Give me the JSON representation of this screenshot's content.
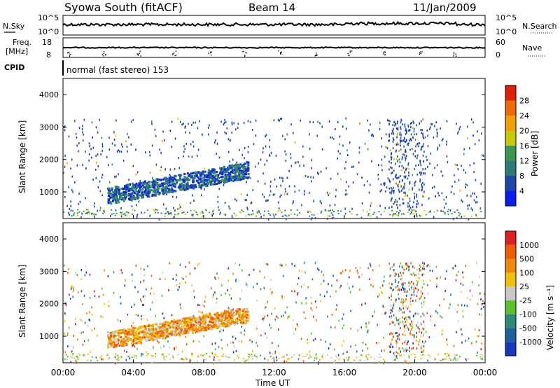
{
  "header": {
    "title": "Syowa South (fitACF)",
    "beam": "Beam 14",
    "date": "11/Jan/2009"
  },
  "noise_panel": {
    "left_label": "N.Sky",
    "right_label": "N.Search",
    "left_ticks": [
      "10^5",
      "10^0"
    ],
    "right_ticks": [
      "10^5",
      "10^0"
    ]
  },
  "freq_panel": {
    "left_label_1": "Freq.",
    "left_label_2": "[MHz]",
    "right_label": "Nave",
    "left_ticks": [
      "18",
      "8"
    ],
    "right_ticks": [
      "60",
      "0"
    ]
  },
  "cpid": {
    "label": "CPID",
    "value": "normal (fast stereo) 153"
  },
  "x_axis": {
    "label": "Time UT",
    "ticks": [
      "00:00",
      "04:00",
      "08:00",
      "12:00",
      "16:00",
      "20:00",
      "00:00"
    ]
  },
  "colorbar_power": {
    "label": "Power [dB]",
    "ticks": [
      "4",
      "8",
      "12",
      "16",
      "20",
      "24",
      "28"
    ],
    "colors": [
      "#0a1ef0",
      "#1e46a8",
      "#2d7a78",
      "#3c9650",
      "#c8c800",
      "#f0a000",
      "#f06a00",
      "#e02000"
    ]
  },
  "colorbar_velocity": {
    "label": "Velocity [m s⁻¹]",
    "ticks": [
      "1000",
      "500",
      "100",
      "25",
      "-25",
      "-100",
      "-500",
      "-1000"
    ],
    "colors": [
      "#1838c0",
      "#2060a0",
      "#2d8a78",
      "#5ac030",
      "#c8c8c8",
      "#f0c000",
      "#f08800",
      "#f05a00",
      "#e02020"
    ]
  },
  "chart_data": [
    {
      "type": "heatmap",
      "title": "Power",
      "xlabel": "Time UT",
      "ylabel": "Slant Range [km]",
      "xlim": [
        0,
        24
      ],
      "ylim": [
        180,
        4500
      ],
      "yticks": [
        1000,
        2000,
        3000,
        4000
      ],
      "ytick_labels": [
        "1000",
        "2000",
        "3000",
        "4000"
      ],
      "color_scale": "Power [dB]",
      "scatter_regions": [
        {
          "t_start": 0.0,
          "t_end": 24.0,
          "r_min": 180,
          "r_max": 3300,
          "level": "sparse"
        },
        {
          "t_start": 2.5,
          "t_end": 10.5,
          "r_min": 700,
          "r_max": 1800,
          "level": "dense"
        },
        {
          "t_start": 18.5,
          "t_end": 20.5,
          "r_min": 500,
          "r_max": 3300,
          "level": "medium"
        }
      ]
    },
    {
      "type": "heatmap",
      "title": "Velocity",
      "xlabel": "Time UT",
      "ylabel": "Slant Range [km]",
      "xlim": [
        0,
        24
      ],
      "ylim": [
        180,
        4500
      ],
      "yticks": [
        1000,
        2000,
        3000,
        4000
      ],
      "ytick_labels": [
        "1000",
        "2000",
        "3000",
        "4000"
      ],
      "color_scale": "Velocity [m s-1]",
      "scatter_regions": [
        {
          "t_start": 0.0,
          "t_end": 24.0,
          "r_min": 180,
          "r_max": 3300,
          "level": "sparse"
        },
        {
          "t_start": 2.5,
          "t_end": 10.5,
          "r_min": 700,
          "r_max": 1800,
          "level": "dense"
        },
        {
          "t_start": 18.5,
          "t_end": 20.5,
          "r_min": 500,
          "r_max": 3300,
          "level": "medium"
        }
      ]
    }
  ]
}
